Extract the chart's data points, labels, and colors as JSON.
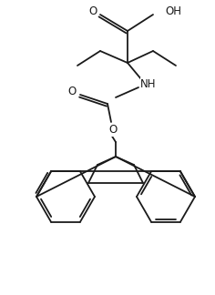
{
  "bg_color": "#ffffff",
  "line_color": "#1a1a1a",
  "line_width": 1.3,
  "font_size": 7.5,
  "figsize": [
    2.36,
    3.24
  ],
  "dpi": 100,
  "xlim": [
    0,
    236
  ],
  "ylim": [
    0,
    324
  ]
}
